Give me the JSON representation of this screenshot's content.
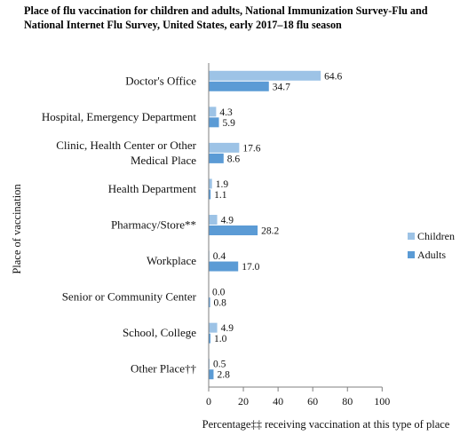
{
  "chart_data": {
    "type": "bar",
    "orientation": "horizontal",
    "title": "Place of flu vaccination for children and adults, National Immunization Survey-Flu and National Internet Flu Survey, United States, early 2017–18 flu season",
    "categories": [
      [
        "Doctor's Office"
      ],
      [
        "Hospital, Emergency Department"
      ],
      [
        "Clinic, Health Center or Other",
        "Medical Place"
      ],
      [
        "Health Department"
      ],
      [
        "Pharmacy/Store**"
      ],
      [
        "Workplace"
      ],
      [
        "Senior or Community Center"
      ],
      [
        "School, College"
      ],
      [
        "Other Place††"
      ]
    ],
    "series": [
      {
        "name": "Children",
        "color": "#9dc3e6",
        "values": [
          64.6,
          4.3,
          17.6,
          1.9,
          4.9,
          0.4,
          0.0,
          4.9,
          0.5
        ],
        "labels": [
          "64.6",
          "4.3",
          "17.6",
          "1.9",
          "4.9",
          "0.4",
          "0.0",
          "4.9",
          "0.5"
        ]
      },
      {
        "name": "Adults",
        "color": "#5b9bd5",
        "values": [
          34.7,
          5.9,
          8.6,
          1.1,
          28.2,
          17.0,
          0.8,
          1.0,
          2.8
        ],
        "labels": [
          "34.7",
          "5.9",
          "8.6",
          "1.1",
          "28.2",
          "17.0",
          "0.8",
          "1.0",
          "2.8"
        ]
      }
    ],
    "xlim": [
      0,
      100
    ],
    "xticks": [
      "0",
      "20",
      "40",
      "60",
      "80",
      "100"
    ],
    "xlabel": "Percentage‡‡ receiving vaccination at this type of place",
    "ylabel": "Place of vaccination",
    "legend_position": "right",
    "grid": false
  }
}
